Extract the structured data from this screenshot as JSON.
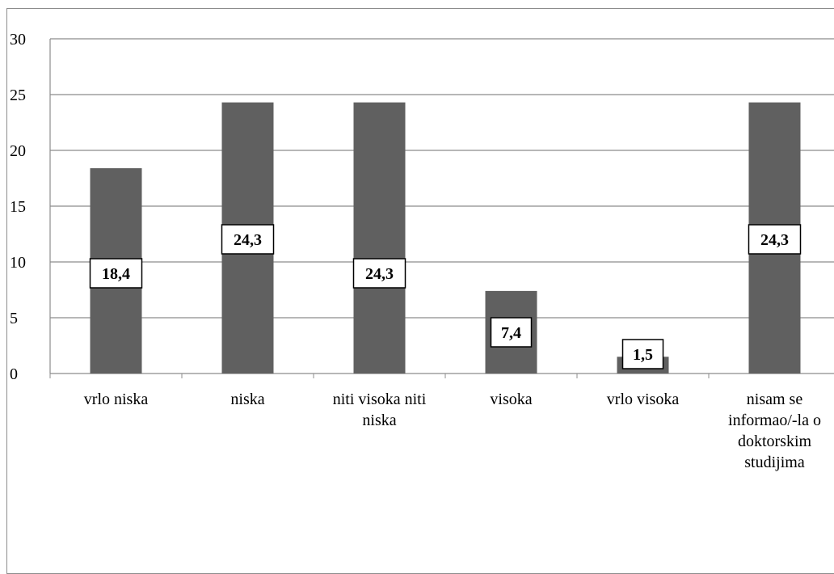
{
  "chart_data": {
    "type": "bar",
    "categories": [
      [
        "vrlo niska"
      ],
      [
        "niska"
      ],
      [
        "niti visoka niti",
        "niska"
      ],
      [
        "visoka"
      ],
      [
        "vrlo visoka"
      ],
      [
        "nisam se",
        "informao/-la o",
        "doktorskim",
        "studijima"
      ]
    ],
    "values": [
      18.4,
      24.3,
      24.3,
      7.4,
      1.5,
      24.3
    ],
    "data_labels": [
      "18,4",
      "24,3",
      "24,3",
      "7,4",
      "1,5",
      "24,3"
    ],
    "y_ticks": [
      "0",
      "5",
      "10",
      "15",
      "20",
      "25",
      "30"
    ],
    "ylim": [
      0,
      30
    ],
    "grid": true,
    "legend": "none",
    "title": "",
    "xlabel": "",
    "ylabel": "",
    "colors": {
      "bar": "#606060",
      "gridline": "#8c8c8c",
      "axis": "#8c8c8c",
      "label_box_fill": "#ffffff",
      "label_box_stroke": "#000000"
    }
  }
}
